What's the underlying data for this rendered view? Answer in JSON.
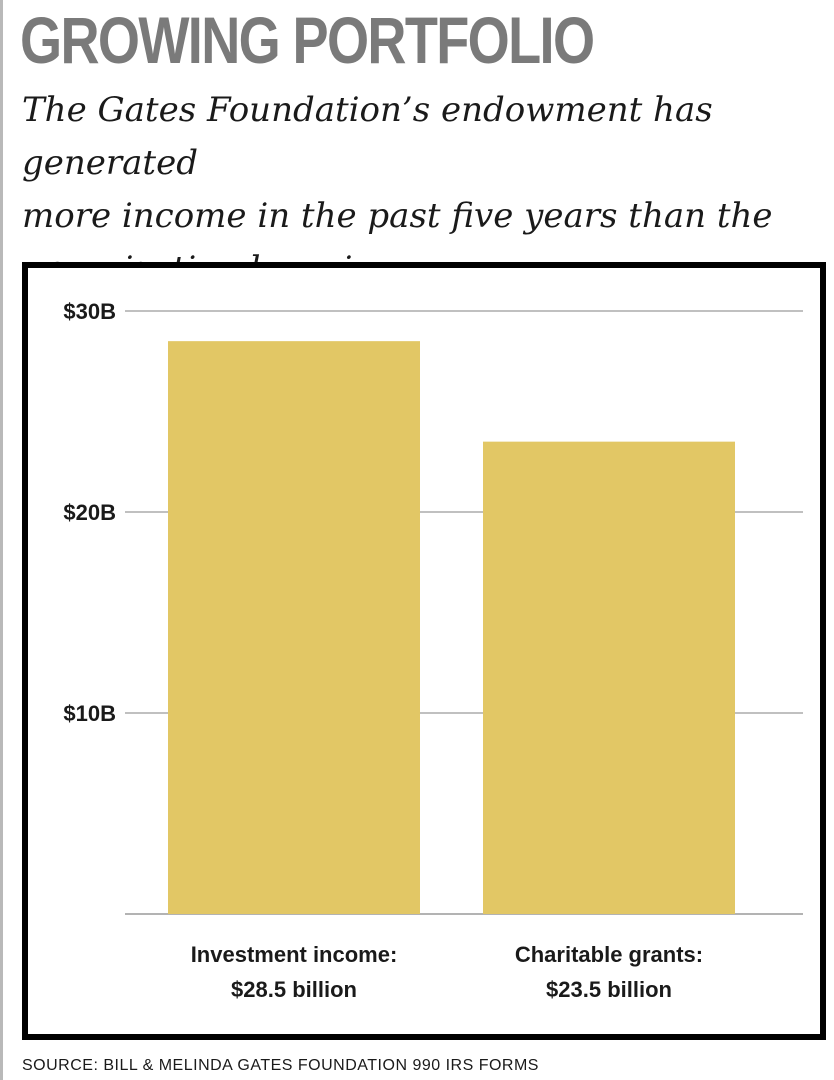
{
  "header": {
    "title": "GROWING PORTFOLIO",
    "subtitle_lines": [
      "The Gates Foundation’s endowment has generated",
      "more income in the past five years than the",
      "organization has given away."
    ]
  },
  "footer": {
    "source": "SOURCE: BILL & MELINDA GATES FOUNDATION 990 IRS FORMS"
  },
  "colors": {
    "bar": "#e2c765",
    "grid": "#9a9a9a",
    "frame": "#000000",
    "title": "#7a7a7a"
  },
  "chart_data": {
    "type": "bar",
    "categories": [
      "Investment income:",
      "Charitable grants:"
    ],
    "category_value_labels": [
      "$28.5 billion",
      "$23.5 billion"
    ],
    "values": [
      28.5,
      23.5
    ],
    "units": "billion USD",
    "ylim": [
      0,
      30
    ],
    "yticks": [
      10,
      20,
      30
    ],
    "ytick_labels": [
      "$10B",
      "$20B",
      "$30B"
    ],
    "grid": true,
    "title": "GROWING PORTFOLIO",
    "xlabel": "",
    "ylabel": ""
  }
}
